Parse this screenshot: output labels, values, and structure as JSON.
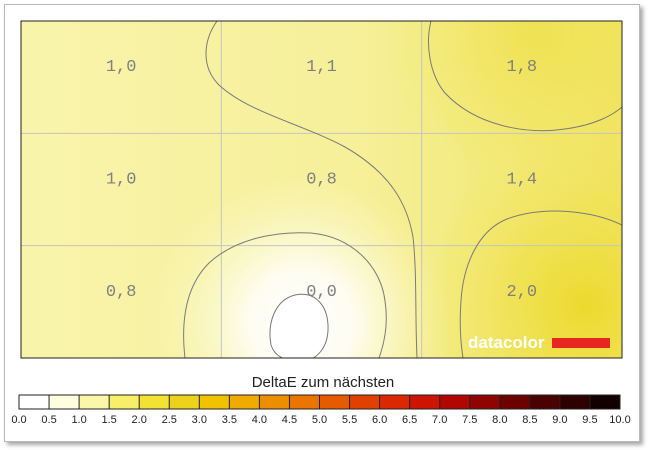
{
  "chart_data": {
    "type": "heatmap",
    "rows": 3,
    "cols": 3,
    "labels": [
      [
        "1,0",
        "1,1",
        "1,8"
      ],
      [
        "1,0",
        "0,8",
        "1,4"
      ],
      [
        "0,8",
        "0,0",
        "2,0"
      ]
    ],
    "values": [
      [
        1.0,
        1.1,
        1.8
      ],
      [
        1.0,
        0.8,
        1.4
      ],
      [
        0.8,
        0.0,
        2.0
      ]
    ],
    "contour_levels": [
      0.5,
      1.0,
      1.5,
      2.0
    ],
    "legend": {
      "title": "DeltaE zum nächsten",
      "min": 0.0,
      "max": 10.0,
      "ticks": [
        "0.0",
        "0.5",
        "1.0",
        "1.5",
        "2.0",
        "2.5",
        "3.0",
        "3.5",
        "4.0",
        "4.5",
        "5.0",
        "5.5",
        "6.0",
        "6.5",
        "7.0",
        "7.5",
        "8.0",
        "8.5",
        "9.0",
        "9.5",
        "10.0"
      ],
      "colors": [
        "#ffffff",
        "#fffde0",
        "#fbf7a8",
        "#f7ef6a",
        "#f2e233",
        "#ecd21a",
        "#f0c200",
        "#f0aa00",
        "#ec8e00",
        "#e97400",
        "#e65a00",
        "#e24000",
        "#dc2800",
        "#cc1400",
        "#b00800",
        "#900400",
        "#6c0200",
        "#4a0100",
        "#2e0000",
        "#120000"
      ]
    },
    "grid": true
  },
  "watermark": {
    "text": "datacolor",
    "bar_color": "#e6261f"
  }
}
